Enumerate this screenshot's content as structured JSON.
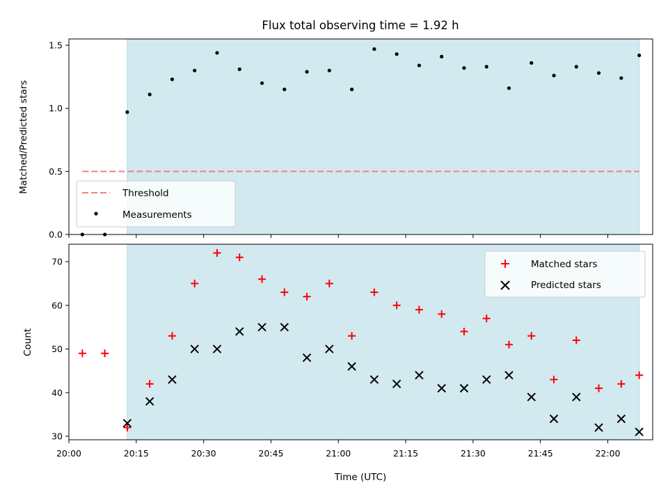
{
  "chart_data": [
    {
      "type": "scatter",
      "title": "Flux total observing time = 1.92 h",
      "ylabel": "Matched/Predicted stars",
      "xlim": [
        "20:00",
        "22:10"
      ],
      "ylim": [
        0,
        1.55
      ],
      "yticks": [
        0.0,
        0.5,
        1.0,
        1.5
      ],
      "ytick_labels": [
        "0.0",
        "0.5",
        "1.0",
        "1.5"
      ],
      "shaded_interval": [
        "20:13",
        "22:07"
      ],
      "shade_color": "#d3e9f0",
      "legend": "lower-left",
      "threshold": {
        "name": "Threshold",
        "value": 0.5,
        "x_range": [
          "20:03",
          "22:07"
        ],
        "color": "#f08080"
      },
      "series": [
        {
          "name": "Measurements",
          "color": "#000000",
          "x": [
            "20:03",
            "20:08",
            "20:13",
            "20:18",
            "20:23",
            "20:28",
            "20:33",
            "20:38",
            "20:43",
            "20:48",
            "20:53",
            "20:58",
            "21:03",
            "21:08",
            "21:13",
            "21:18",
            "21:23",
            "21:28",
            "21:33",
            "21:38",
            "21:43",
            "21:48",
            "21:53",
            "21:58",
            "22:03",
            "22:07"
          ],
          "y": [
            0.0,
            0.0,
            0.97,
            1.11,
            1.23,
            1.3,
            1.44,
            1.31,
            1.2,
            1.15,
            1.29,
            1.3,
            1.15,
            1.47,
            1.43,
            1.34,
            1.41,
            1.32,
            1.33,
            1.16,
            1.36,
            1.26,
            1.33,
            1.28,
            1.24,
            1.42
          ]
        }
      ]
    },
    {
      "type": "scatter",
      "xlabel": "Time (UTC)",
      "ylabel": "Count",
      "xlim": [
        "20:00",
        "22:10"
      ],
      "xticks": [
        "20:00",
        "20:15",
        "20:30",
        "20:45",
        "21:00",
        "21:15",
        "21:30",
        "21:45",
        "22:00"
      ],
      "ylim": [
        29.2,
        74
      ],
      "yticks": [
        30,
        40,
        50,
        60,
        70
      ],
      "shaded_interval": [
        "20:13",
        "22:07"
      ],
      "shade_color": "#d3e9f0",
      "legend": "top-right",
      "series": [
        {
          "name": "Matched stars",
          "marker": "plus",
          "color": "#ff0000",
          "x": [
            "20:03",
            "20:08",
            "20:13",
            "20:18",
            "20:23",
            "20:28",
            "20:33",
            "20:38",
            "20:43",
            "20:48",
            "20:53",
            "20:58",
            "21:03",
            "21:08",
            "21:13",
            "21:18",
            "21:23",
            "21:28",
            "21:33",
            "21:38",
            "21:43",
            "21:48",
            "21:53",
            "21:58",
            "22:03",
            "22:07"
          ],
          "y": [
            49,
            49,
            32,
            42,
            53,
            65,
            72,
            71,
            66,
            63,
            62,
            65,
            53,
            63,
            60,
            59,
            58,
            54,
            57,
            51,
            53,
            43,
            52,
            41,
            42,
            44
          ]
        },
        {
          "name": "Predicted stars",
          "marker": "x",
          "color": "#000000",
          "x": [
            "20:13",
            "20:18",
            "20:23",
            "20:28",
            "20:33",
            "20:38",
            "20:43",
            "20:48",
            "20:53",
            "20:58",
            "21:03",
            "21:08",
            "21:13",
            "21:18",
            "21:23",
            "21:28",
            "21:33",
            "21:38",
            "21:43",
            "21:48",
            "21:53",
            "21:58",
            "22:03",
            "22:07"
          ],
          "y": [
            33,
            38,
            43,
            50,
            50,
            54,
            55,
            55,
            48,
            50,
            46,
            43,
            42,
            44,
            41,
            41,
            43,
            44,
            39,
            34,
            39,
            32,
            34,
            31
          ]
        }
      ]
    }
  ]
}
